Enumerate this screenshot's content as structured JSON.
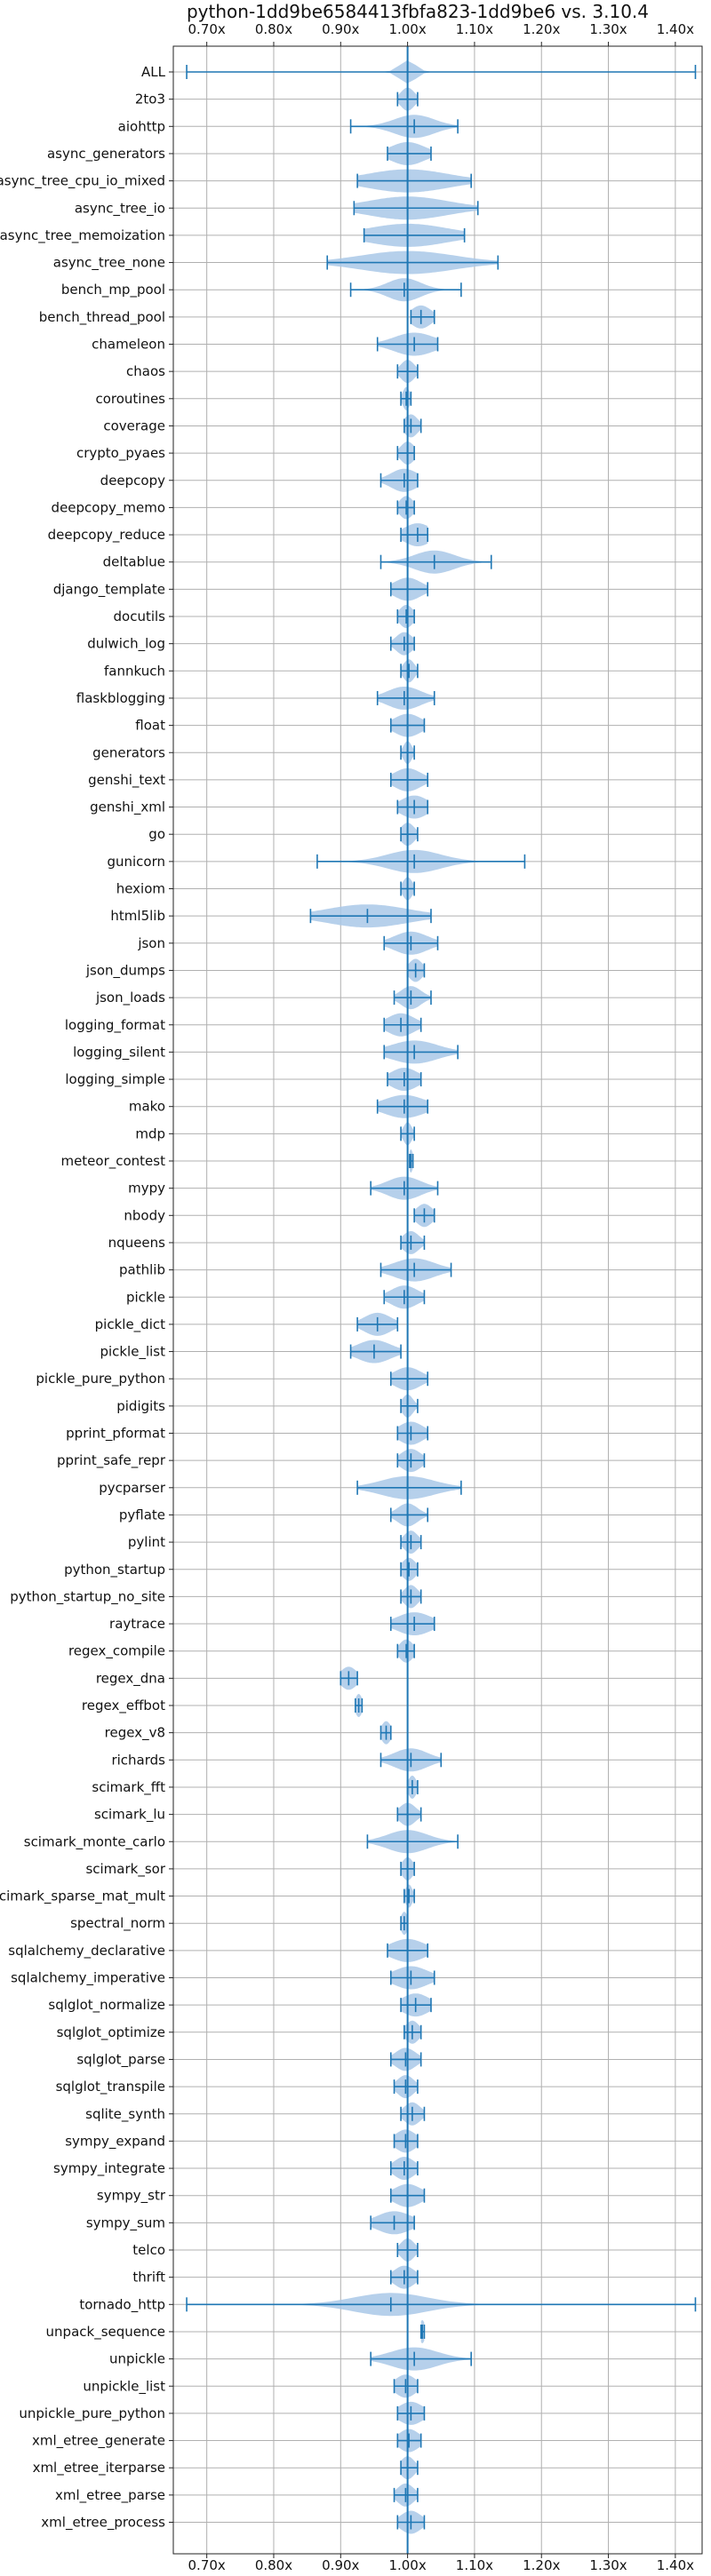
{
  "chart_data": {
    "type": "violin",
    "title": "python-1dd9be6584413fbfa823-1dd9be6 vs. 3.10.4",
    "xlim": [
      0.65,
      1.44
    ],
    "x_ticks": [
      0.7,
      0.8,
      0.9,
      1.0,
      1.1,
      1.2,
      1.3,
      1.4
    ],
    "x_tick_labels": [
      "0.70x",
      "0.80x",
      "0.90x",
      "1.00x",
      "1.10x",
      "1.20x",
      "1.30x",
      "1.40x"
    ],
    "reference_line": 1.0,
    "grid": true,
    "colors": {
      "violin_fill": "#a9c8e8",
      "line": "#1f77b4",
      "grid": "#b0b0b0"
    },
    "benchmarks": [
      {
        "name": "ALL",
        "min": 0.67,
        "max": 1.43,
        "mean": 1.0,
        "width": 0.012
      },
      {
        "name": "2to3",
        "min": 0.985,
        "max": 1.015,
        "mean": 1.0,
        "width": 0.01
      },
      {
        "name": "aiohttp",
        "min": 0.915,
        "max": 1.075,
        "mean": 1.01,
        "width": 0.03
      },
      {
        "name": "async_generators",
        "min": 0.97,
        "max": 1.035,
        "mean": 1.0,
        "width": 0.025
      },
      {
        "name": "async_tree_cpu_io_mixed",
        "min": 0.925,
        "max": 1.095,
        "mean": 1.0,
        "width": 0.06
      },
      {
        "name": "async_tree_io",
        "min": 0.92,
        "max": 1.105,
        "mean": 1.0,
        "width": 0.06
      },
      {
        "name": "async_tree_memoization",
        "min": 0.935,
        "max": 1.085,
        "mean": 1.0,
        "width": 0.06
      },
      {
        "name": "async_tree_none",
        "min": 0.88,
        "max": 1.135,
        "mean": 1.0,
        "width": 0.07
      },
      {
        "name": "bench_mp_pool",
        "min": 0.915,
        "max": 1.08,
        "mean": 0.995,
        "width": 0.025
      },
      {
        "name": "bench_thread_pool",
        "min": 1.005,
        "max": 1.04,
        "mean": 1.02,
        "width": 0.015
      },
      {
        "name": "chameleon",
        "min": 0.955,
        "max": 1.045,
        "mean": 1.01,
        "width": 0.03
      },
      {
        "name": "chaos",
        "min": 0.985,
        "max": 1.015,
        "mean": 1.0,
        "width": 0.01
      },
      {
        "name": "coroutines",
        "min": 0.99,
        "max": 1.005,
        "mean": 0.998,
        "width": 0.005
      },
      {
        "name": "coverage",
        "min": 0.995,
        "max": 1.02,
        "mean": 1.005,
        "width": 0.01
      },
      {
        "name": "crypto_pyaes",
        "min": 0.985,
        "max": 1.01,
        "mean": 1.0,
        "width": 0.01
      },
      {
        "name": "deepcopy",
        "min": 0.96,
        "max": 1.015,
        "mean": 0.995,
        "width": 0.02
      },
      {
        "name": "deepcopy_memo",
        "min": 0.985,
        "max": 1.01,
        "mean": 0.998,
        "width": 0.01
      },
      {
        "name": "deepcopy_reduce",
        "min": 0.99,
        "max": 1.03,
        "mean": 1.015,
        "width": 0.02
      },
      {
        "name": "deltablue",
        "min": 0.96,
        "max": 1.125,
        "mean": 1.04,
        "width": 0.03
      },
      {
        "name": "django_template",
        "min": 0.975,
        "max": 1.03,
        "mean": 1.0,
        "width": 0.02
      },
      {
        "name": "docutils",
        "min": 0.985,
        "max": 1.01,
        "mean": 0.998,
        "width": 0.01
      },
      {
        "name": "dulwich_log",
        "min": 0.975,
        "max": 1.01,
        "mean": 0.995,
        "width": 0.012
      },
      {
        "name": "fannkuch",
        "min": 0.99,
        "max": 1.015,
        "mean": 1.002,
        "width": 0.008
      },
      {
        "name": "flaskblogging",
        "min": 0.955,
        "max": 1.04,
        "mean": 0.995,
        "width": 0.025
      },
      {
        "name": "float",
        "min": 0.975,
        "max": 1.025,
        "mean": 1.0,
        "width": 0.02
      },
      {
        "name": "generators",
        "min": 0.99,
        "max": 1.01,
        "mean": 1.0,
        "width": 0.006
      },
      {
        "name": "genshi_text",
        "min": 0.975,
        "max": 1.03,
        "mean": 1.0,
        "width": 0.02
      },
      {
        "name": "genshi_xml",
        "min": 0.985,
        "max": 1.03,
        "mean": 1.01,
        "width": 0.02
      },
      {
        "name": "go",
        "min": 0.99,
        "max": 1.015,
        "mean": 1.0,
        "width": 0.01
      },
      {
        "name": "gunicorn",
        "min": 0.865,
        "max": 1.175,
        "mean": 1.01,
        "width": 0.04
      },
      {
        "name": "hexiom",
        "min": 0.99,
        "max": 1.01,
        "mean": 1.0,
        "width": 0.007
      },
      {
        "name": "html5lib",
        "min": 0.855,
        "max": 1.035,
        "mean": 0.94,
        "width": 0.06
      },
      {
        "name": "json",
        "min": 0.965,
        "max": 1.045,
        "mean": 1.005,
        "width": 0.025
      },
      {
        "name": "json_dumps",
        "min": 1.0,
        "max": 1.025,
        "mean": 1.012,
        "width": 0.01
      },
      {
        "name": "json_loads",
        "min": 0.98,
        "max": 1.035,
        "mean": 1.005,
        "width": 0.015
      },
      {
        "name": "logging_format",
        "min": 0.965,
        "max": 1.02,
        "mean": 0.99,
        "width": 0.02
      },
      {
        "name": "logging_silent",
        "min": 0.965,
        "max": 1.075,
        "mean": 1.01,
        "width": 0.035
      },
      {
        "name": "logging_simple",
        "min": 0.97,
        "max": 1.02,
        "mean": 0.995,
        "width": 0.02
      },
      {
        "name": "mako",
        "min": 0.955,
        "max": 1.03,
        "mean": 0.995,
        "width": 0.03
      },
      {
        "name": "mdp",
        "min": 0.99,
        "max": 1.01,
        "mean": 1.0,
        "width": 0.006
      },
      {
        "name": "meteor_contest",
        "min": 1.003,
        "max": 1.008,
        "mean": 1.005,
        "width": 0.003
      },
      {
        "name": "mypy",
        "min": 0.945,
        "max": 1.045,
        "mean": 0.995,
        "width": 0.025
      },
      {
        "name": "nbody",
        "min": 1.01,
        "max": 1.04,
        "mean": 1.025,
        "width": 0.012
      },
      {
        "name": "nqueens",
        "min": 0.99,
        "max": 1.025,
        "mean": 1.005,
        "width": 0.012
      },
      {
        "name": "pathlib",
        "min": 0.96,
        "max": 1.065,
        "mean": 1.01,
        "width": 0.03
      },
      {
        "name": "pickle",
        "min": 0.965,
        "max": 1.025,
        "mean": 0.995,
        "width": 0.02
      },
      {
        "name": "pickle_dict",
        "min": 0.925,
        "max": 0.985,
        "mean": 0.955,
        "width": 0.02
      },
      {
        "name": "pickle_list",
        "min": 0.915,
        "max": 0.99,
        "mean": 0.95,
        "width": 0.025
      },
      {
        "name": "pickle_pure_python",
        "min": 0.975,
        "max": 1.03,
        "mean": 1.0,
        "width": 0.02
      },
      {
        "name": "pidigits",
        "min": 0.99,
        "max": 1.015,
        "mean": 1.0,
        "width": 0.008
      },
      {
        "name": "pprint_pformat",
        "min": 0.985,
        "max": 1.03,
        "mean": 1.005,
        "width": 0.018
      },
      {
        "name": "pprint_safe_repr",
        "min": 0.985,
        "max": 1.025,
        "mean": 1.005,
        "width": 0.015
      },
      {
        "name": "pycparser",
        "min": 0.925,
        "max": 1.08,
        "mean": 1.0,
        "width": 0.04
      },
      {
        "name": "pyflate",
        "min": 0.975,
        "max": 1.03,
        "mean": 1.0,
        "width": 0.015
      },
      {
        "name": "pylint",
        "min": 0.99,
        "max": 1.02,
        "mean": 1.005,
        "width": 0.01
      },
      {
        "name": "python_startup",
        "min": 0.99,
        "max": 1.015,
        "mean": 1.002,
        "width": 0.01
      },
      {
        "name": "python_startup_no_site",
        "min": 0.99,
        "max": 1.02,
        "mean": 1.005,
        "width": 0.01
      },
      {
        "name": "raytrace",
        "min": 0.975,
        "max": 1.04,
        "mean": 1.01,
        "width": 0.025
      },
      {
        "name": "regex_compile",
        "min": 0.985,
        "max": 1.01,
        "mean": 0.998,
        "width": 0.01
      },
      {
        "name": "regex_dna",
        "min": 0.9,
        "max": 0.925,
        "mean": 0.912,
        "width": 0.012
      },
      {
        "name": "regex_effbot",
        "min": 0.922,
        "max": 0.932,
        "mean": 0.927,
        "width": 0.005
      },
      {
        "name": "regex_v8",
        "min": 0.96,
        "max": 0.975,
        "mean": 0.968,
        "width": 0.007
      },
      {
        "name": "richards",
        "min": 0.96,
        "max": 1.05,
        "mean": 1.005,
        "width": 0.025
      },
      {
        "name": "scimark_fft",
        "min": 1.0,
        "max": 1.015,
        "mean": 1.007,
        "width": 0.006
      },
      {
        "name": "scimark_lu",
        "min": 0.985,
        "max": 1.02,
        "mean": 1.0,
        "width": 0.012
      },
      {
        "name": "scimark_monte_carlo",
        "min": 0.94,
        "max": 1.075,
        "mean": 1.0,
        "width": 0.03
      },
      {
        "name": "scimark_sor",
        "min": 0.99,
        "max": 1.01,
        "mean": 1.0,
        "width": 0.008
      },
      {
        "name": "scimark_sparse_mat_mult",
        "min": 0.995,
        "max": 1.01,
        "mean": 1.002,
        "width": 0.005
      },
      {
        "name": "spectral_norm",
        "min": 0.99,
        "max": 1.0,
        "mean": 0.995,
        "width": 0.005
      },
      {
        "name": "sqlalchemy_declarative",
        "min": 0.97,
        "max": 1.03,
        "mean": 1.0,
        "width": 0.025
      },
      {
        "name": "sqlalchemy_imperative",
        "min": 0.975,
        "max": 1.04,
        "mean": 1.005,
        "width": 0.025
      },
      {
        "name": "sqlglot_normalize",
        "min": 0.99,
        "max": 1.035,
        "mean": 1.012,
        "width": 0.02
      },
      {
        "name": "sqlglot_optimize",
        "min": 0.995,
        "max": 1.02,
        "mean": 1.007,
        "width": 0.01
      },
      {
        "name": "sqlglot_parse",
        "min": 0.975,
        "max": 1.02,
        "mean": 0.997,
        "width": 0.015
      },
      {
        "name": "sqlglot_transpile",
        "min": 0.98,
        "max": 1.015,
        "mean": 0.997,
        "width": 0.012
      },
      {
        "name": "sqlite_synth",
        "min": 0.99,
        "max": 1.025,
        "mean": 1.007,
        "width": 0.012
      },
      {
        "name": "sympy_expand",
        "min": 0.98,
        "max": 1.015,
        "mean": 0.997,
        "width": 0.015
      },
      {
        "name": "sympy_integrate",
        "min": 0.975,
        "max": 1.015,
        "mean": 0.995,
        "width": 0.015
      },
      {
        "name": "sympy_str",
        "min": 0.975,
        "max": 1.025,
        "mean": 1.0,
        "width": 0.02
      },
      {
        "name": "sympy_sum",
        "min": 0.945,
        "max": 1.01,
        "mean": 0.98,
        "width": 0.025
      },
      {
        "name": "telco",
        "min": 0.985,
        "max": 1.015,
        "mean": 1.0,
        "width": 0.01
      },
      {
        "name": "thrift",
        "min": 0.975,
        "max": 1.015,
        "mean": 0.995,
        "width": 0.015
      },
      {
        "name": "tornado_http",
        "min": 0.67,
        "max": 1.43,
        "mean": 0.975,
        "width": 0.055
      },
      {
        "name": "unpack_sequence",
        "min": 1.02,
        "max": 1.025,
        "mean": 1.022,
        "width": 0.004
      },
      {
        "name": "unpickle",
        "min": 0.945,
        "max": 1.095,
        "mean": 1.01,
        "width": 0.035
      },
      {
        "name": "unpickle_list",
        "min": 0.98,
        "max": 1.015,
        "mean": 0.997,
        "width": 0.015
      },
      {
        "name": "unpickle_pure_python",
        "min": 0.985,
        "max": 1.025,
        "mean": 1.005,
        "width": 0.018
      },
      {
        "name": "xml_etree_generate",
        "min": 0.985,
        "max": 1.02,
        "mean": 1.002,
        "width": 0.015
      },
      {
        "name": "xml_etree_iterparse",
        "min": 0.99,
        "max": 1.015,
        "mean": 1.0,
        "width": 0.01
      },
      {
        "name": "xml_etree_parse",
        "min": 0.98,
        "max": 1.015,
        "mean": 0.997,
        "width": 0.012
      },
      {
        "name": "xml_etree_process",
        "min": 0.985,
        "max": 1.025,
        "mean": 1.005,
        "width": 0.015
      }
    ]
  }
}
